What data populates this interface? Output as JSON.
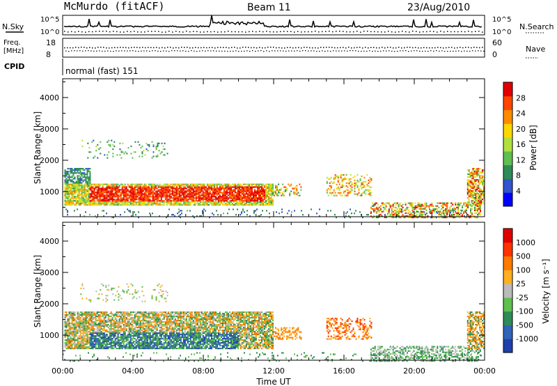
{
  "header": {
    "station": "McMurdo (fitACF)",
    "beam": "Beam 11",
    "date": "23/Aug/2010"
  },
  "top_panels": {
    "nsky_label": "N.Sky",
    "nsearch_label": "N.Search",
    "nsky_ticks": [
      "10^5",
      "10^0"
    ],
    "nsky_ticks_right": [
      "10^5",
      "10^0"
    ],
    "freq_label_1": "Freq.",
    "freq_label_2": "[MHz]",
    "freq_ticks": [
      "18",
      "8"
    ],
    "nave_label": "Nave",
    "nave_ticks": [
      "60",
      "0"
    ],
    "cpid_label": "CPID",
    "cpid_value": "normal (fast) 151"
  },
  "chart_data": [
    {
      "type": "heatmap",
      "name": "power-panel",
      "ylabel": "Slant Range [km]",
      "y_ticks": [
        1000,
        2000,
        3000,
        4000
      ],
      "ylim": [
        200,
        4600
      ],
      "x_ticks": [
        "00:00",
        "04:00",
        "08:00",
        "12:00",
        "16:00",
        "20:00",
        "00:00"
      ],
      "colorbar": {
        "label": "Power [dB]",
        "ticks": [
          28,
          24,
          20,
          16,
          12,
          8,
          4
        ],
        "range": [
          0,
          32
        ],
        "colors": [
          "#0000ff",
          "#3355cc",
          "#2e8b57",
          "#5fbf4f",
          "#b0e040",
          "#ffd700",
          "#ff8c00",
          "#ff4500",
          "#e00000"
        ]
      }
    },
    {
      "type": "heatmap",
      "name": "velocity-panel",
      "ylabel": "Slant Range [km]",
      "y_ticks": [
        1000,
        2000,
        3000,
        4000
      ],
      "ylim": [
        200,
        4600
      ],
      "x_ticks": [
        "00:00",
        "04:00",
        "08:00",
        "12:00",
        "16:00",
        "20:00",
        "00:00"
      ],
      "xlabel": "Time UT",
      "colorbar": {
        "label": "Velocity [m s⁻¹]",
        "ticks": [
          "1000",
          "500",
          "100",
          "25",
          "-25",
          "-100",
          "-500",
          "-1000"
        ],
        "colors": [
          "#1f3faa",
          "#2f64b8",
          "#2e8b57",
          "#5fbf4f",
          "#bbbbbb",
          "#ffb020",
          "#ff7a00",
          "#ff3300",
          "#e00000"
        ]
      }
    }
  ]
}
